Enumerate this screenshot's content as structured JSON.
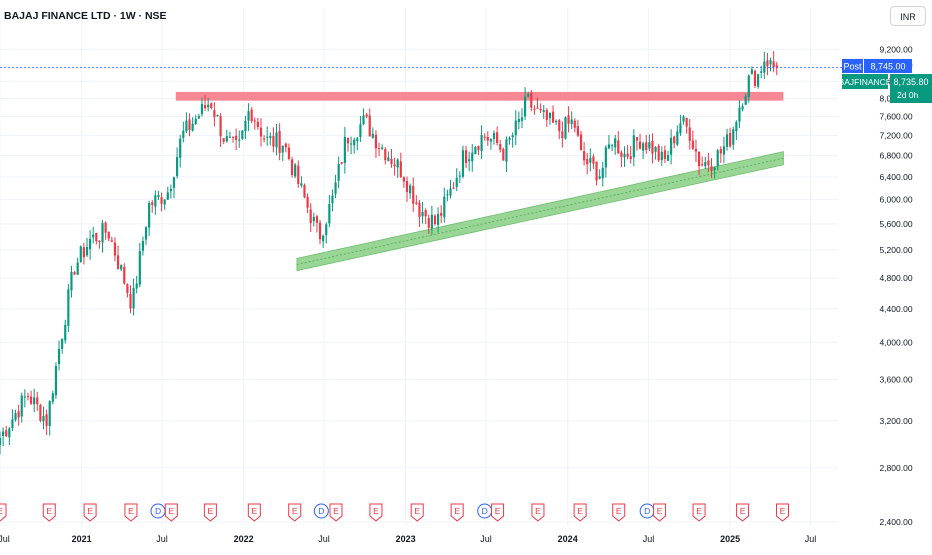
{
  "header": {
    "title": "BAJAJ FINANCE LTD · 1W · NSE",
    "currency": "INR"
  },
  "price_labels": {
    "post_tag": "Post",
    "post_price": "8,745.00",
    "symbol": "BAJFINANCE",
    "last_price": "8,735.80",
    "countdown": "2d 0h"
  },
  "colors": {
    "up": "#089981",
    "down": "#f23645",
    "resistance_zone": "#f7828d",
    "support_channel": "#8fd18a",
    "post_label": "#2962ff",
    "grid": "#f0f3fa",
    "axis_text": "#131722"
  },
  "event_markers": [
    {
      "x": "2020-07-01",
      "label": "E",
      "kind": "earnings"
    },
    {
      "x": "2020-10-20",
      "label": "E",
      "kind": "earnings"
    },
    {
      "x": "2021-01-20",
      "label": "E",
      "kind": "earnings"
    },
    {
      "x": "2021-04-22",
      "label": "E",
      "kind": "earnings"
    },
    {
      "x": "2021-06-22",
      "label": "D",
      "kind": "dividend"
    },
    {
      "x": "2021-07-22",
      "label": "E",
      "kind": "earnings"
    },
    {
      "x": "2021-10-18",
      "label": "E",
      "kind": "earnings"
    },
    {
      "x": "2022-01-25",
      "label": "E",
      "kind": "earnings"
    },
    {
      "x": "2022-04-26",
      "label": "E",
      "kind": "earnings"
    },
    {
      "x": "2022-06-25",
      "label": "D",
      "kind": "dividend"
    },
    {
      "x": "2022-07-28",
      "label": "E",
      "kind": "earnings"
    },
    {
      "x": "2022-10-26",
      "label": "E",
      "kind": "earnings"
    },
    {
      "x": "2023-01-27",
      "label": "E",
      "kind": "earnings"
    },
    {
      "x": "2023-04-27",
      "label": "E",
      "kind": "earnings"
    },
    {
      "x": "2023-06-28",
      "label": "D",
      "kind": "dividend"
    },
    {
      "x": "2023-07-27",
      "label": "E",
      "kind": "earnings"
    },
    {
      "x": "2023-10-26",
      "label": "E",
      "kind": "earnings"
    },
    {
      "x": "2024-01-29",
      "label": "E",
      "kind": "earnings"
    },
    {
      "x": "2024-04-25",
      "label": "E",
      "kind": "earnings"
    },
    {
      "x": "2024-06-28",
      "label": "D",
      "kind": "dividend"
    },
    {
      "x": "2024-07-26",
      "label": "E",
      "kind": "earnings"
    },
    {
      "x": "2024-10-23",
      "label": "E",
      "kind": "earnings"
    },
    {
      "x": "2025-01-29",
      "label": "E",
      "kind": "earnings"
    },
    {
      "x": "2025-04-29",
      "label": "E",
      "kind": "earnings"
    }
  ],
  "chart_data": {
    "type": "candlestick",
    "title": "BAJAJ FINANCE LTD · 1W · NSE",
    "interval": "1W",
    "exchange": "NSE",
    "currency": "INR",
    "y_scale": "log",
    "ylim": [
      2400,
      9500
    ],
    "y_ticks": [
      9200,
      8800,
      8400,
      8000,
      7600,
      7200,
      6800,
      6400,
      6000,
      5600,
      5200,
      4800,
      4400,
      4000,
      3600,
      3200,
      2800,
      2400
    ],
    "y_tick_labels": [
      "9,200.00",
      "8,800.00",
      "8,400.00",
      "8,000.00",
      "7,600.00",
      "7,200.00",
      "6,800.00",
      "6,400.00",
      "6,000.00",
      "5,600.00",
      "5,200.00",
      "4,800.00",
      "4,400.00",
      "4,000.00",
      "3,600.00",
      "3,200.00",
      "2,800.00",
      "2,400.00"
    ],
    "xlim": [
      "2020-07-01",
      "2025-09-01"
    ],
    "x_ticks": [
      {
        "date": "2020-07-01",
        "label": "Jul"
      },
      {
        "date": "2021-01-01",
        "label": "2021"
      },
      {
        "date": "2021-07-01",
        "label": "Jul"
      },
      {
        "date": "2022-01-01",
        "label": "2022"
      },
      {
        "date": "2022-07-01",
        "label": "Jul"
      },
      {
        "date": "2023-01-01",
        "label": "2023"
      },
      {
        "date": "2023-07-01",
        "label": "Jul"
      },
      {
        "date": "2024-01-01",
        "label": "2024"
      },
      {
        "date": "2024-07-01",
        "label": "Jul"
      },
      {
        "date": "2025-01-01",
        "label": "2025"
      },
      {
        "date": "2025-07-01",
        "label": "Jul"
      }
    ],
    "grid": true,
    "last_price": 8735.8,
    "post_market_price": 8745.0,
    "anchors": [
      {
        "date": "2020-07-01",
        "close": 3050
      },
      {
        "date": "2020-09-01",
        "close": 3450
      },
      {
        "date": "2020-10-15",
        "close": 3200
      },
      {
        "date": "2020-11-10",
        "close": 3900
      },
      {
        "date": "2020-12-15",
        "close": 4950
      },
      {
        "date": "2021-01-20",
        "close": 5350
      },
      {
        "date": "2021-03-01",
        "close": 5500
      },
      {
        "date": "2021-04-25",
        "close": 4450
      },
      {
        "date": "2021-06-01",
        "close": 5900
      },
      {
        "date": "2021-07-15",
        "close": 6150
      },
      {
        "date": "2021-08-15",
        "close": 7200
      },
      {
        "date": "2021-10-18",
        "close": 7950
      },
      {
        "date": "2021-11-20",
        "close": 7100
      },
      {
        "date": "2021-12-20",
        "close": 6900
      },
      {
        "date": "2022-01-15",
        "close": 7800
      },
      {
        "date": "2022-02-20",
        "close": 7100
      },
      {
        "date": "2022-04-01",
        "close": 7050
      },
      {
        "date": "2022-05-01",
        "close": 6350
      },
      {
        "date": "2022-06-20",
        "close": 5400
      },
      {
        "date": "2022-07-20",
        "close": 6000
      },
      {
        "date": "2022-08-20",
        "close": 7150
      },
      {
        "date": "2022-10-01",
        "close": 7500
      },
      {
        "date": "2022-11-01",
        "close": 7050
      },
      {
        "date": "2022-12-25",
        "close": 6500
      },
      {
        "date": "2023-02-01",
        "close": 5850
      },
      {
        "date": "2023-03-10",
        "close": 5600
      },
      {
        "date": "2023-04-10",
        "close": 6100
      },
      {
        "date": "2023-05-10",
        "close": 6750
      },
      {
        "date": "2023-06-01",
        "close": 7000
      },
      {
        "date": "2023-06-25",
        "close": 7200
      },
      {
        "date": "2023-07-25",
        "close": 7050
      },
      {
        "date": "2023-08-10",
        "close": 6850
      },
      {
        "date": "2023-09-20",
        "close": 7600
      },
      {
        "date": "2023-10-01",
        "close": 7950
      },
      {
        "date": "2023-11-01",
        "close": 7600
      },
      {
        "date": "2023-12-15",
        "close": 7300
      },
      {
        "date": "2024-01-15",
        "close": 7500
      },
      {
        "date": "2024-02-01",
        "close": 6750
      },
      {
        "date": "2024-03-15",
        "close": 6450
      },
      {
        "date": "2024-04-10",
        "close": 7150
      },
      {
        "date": "2024-05-10",
        "close": 6800
      },
      {
        "date": "2024-06-10",
        "close": 7150
      },
      {
        "date": "2024-07-10",
        "close": 6950
      },
      {
        "date": "2024-08-05",
        "close": 6650
      },
      {
        "date": "2024-09-10",
        "close": 7500
      },
      {
        "date": "2024-10-01",
        "close": 7300
      },
      {
        "date": "2024-10-25",
        "close": 6650
      },
      {
        "date": "2024-11-20",
        "close": 6700
      },
      {
        "date": "2024-12-10",
        "close": 6850
      },
      {
        "date": "2025-01-01",
        "close": 7150
      },
      {
        "date": "2025-01-25",
        "close": 7950
      },
      {
        "date": "2025-02-15",
        "close": 8500
      },
      {
        "date": "2025-03-05",
        "close": 8550
      },
      {
        "date": "2025-03-20",
        "close": 9000
      },
      {
        "date": "2025-04-05",
        "close": 8750
      },
      {
        "date": "2025-04-18",
        "close": 8735.8
      }
    ],
    "resistance_zone": {
      "x_start": "2021-08-01",
      "x_end": "2025-05-01",
      "y_low": 7950,
      "y_high": 8150
    },
    "support_channel": {
      "start": {
        "date": "2022-05-01",
        "y_low": 4960,
        "y_high": 5020
      },
      "end": {
        "date": "2025-05-01",
        "y_low": 6700,
        "y_high": 6800
      }
    }
  }
}
